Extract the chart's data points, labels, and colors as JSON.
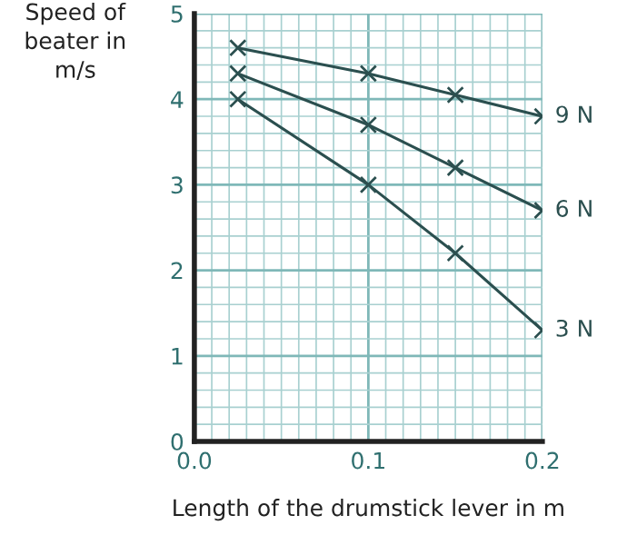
{
  "chart_data": {
    "type": "line",
    "xlabel": "Length of the drumstick lever in m",
    "ylabel": "Speed of\nbeater in\nm/s",
    "xlim": [
      0,
      0.2
    ],
    "ylim": [
      0,
      5
    ],
    "xticks": [
      {
        "value": 0,
        "label": "0.0"
      },
      0.1,
      0.2
    ],
    "yticks": [
      0,
      1,
      2,
      3,
      4,
      5
    ],
    "x": [
      0.025,
      0.1,
      0.15,
      0.2
    ],
    "grid": true,
    "marker": "cross",
    "line_style": "solid",
    "series": [
      {
        "name": "9 N",
        "color": "#2b4f4f",
        "values": [
          4.6,
          4.3,
          4.05,
          3.8
        ]
      },
      {
        "name": "6 N",
        "color": "#2b4f4f",
        "values": [
          4.3,
          3.7,
          3.2,
          2.7
        ]
      },
      {
        "name": "3 N",
        "color": "#2b4f4f",
        "values": [
          4.0,
          3.0,
          2.2,
          1.3
        ]
      }
    ]
  }
}
